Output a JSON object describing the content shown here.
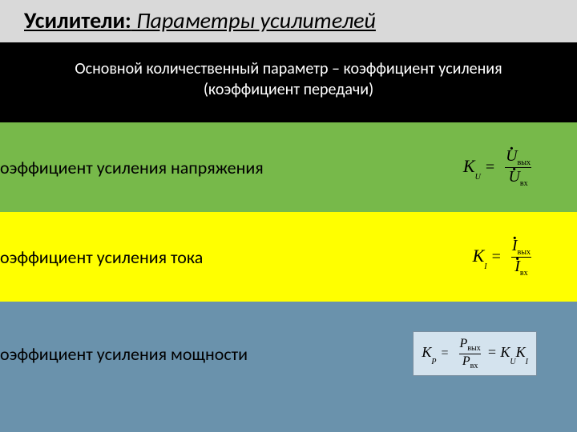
{
  "title": {
    "strong": "Усилители:",
    "italic": " Параметры усилителей"
  },
  "intro": {
    "line1": "Основной количественный параметр – коэффициент усиления",
    "line2": "(коэффициент передачи)"
  },
  "rows": {
    "voltage": {
      "label": "оэффициент усиления напряжения",
      "K": "K",
      "Ksub": "U",
      "numVar": "U",
      "numSub": "вых",
      "denVar": "U",
      "denSub": "вх",
      "bg": "#77b94a"
    },
    "current": {
      "label": "оэффициент усиления тока",
      "K": "K",
      "Ksub": "I",
      "numVar": "I",
      "numSub": "вых",
      "denVar": "I",
      "denSub": "вх",
      "bg": "#ffff00"
    },
    "power": {
      "label": "оэффициент усиления мощности",
      "K": "K",
      "Ksub": "P",
      "numVar": "P",
      "numSub": "вых",
      "denVar": "P",
      "denSub": "вх",
      "tail": " = K",
      "tailSub1": "U",
      "tail2": "K",
      "tailSub2": "I",
      "bg": "#6a92ac"
    }
  },
  "colors": {
    "titleBg": "#d9d9d9",
    "introBg": "#000000",
    "introText": "#ffffff",
    "green": "#77b94a",
    "yellow": "#ffff00",
    "blue": "#6a92ac"
  }
}
